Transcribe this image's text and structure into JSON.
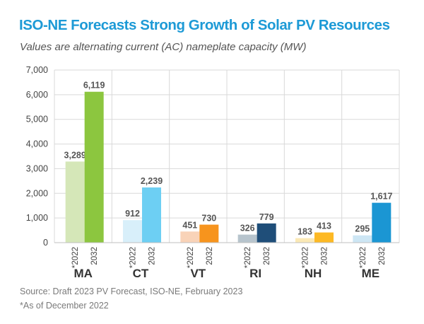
{
  "title": "ISO-NE Forecasts Strong Growth of Solar PV Resources",
  "subtitle": "Values are alternating current (AC) nameplate capacity (MW)",
  "source": "Source: Draft 2023 PV Forecast, ISO-NE, February 2023",
  "note": "*As of December 2022",
  "chart_data": {
    "type": "bar",
    "title": "ISO-NE Forecasts Strong Growth of Solar PV Resources",
    "ylim": [
      0,
      7000
    ],
    "yticks": [
      0,
      1000,
      2000,
      3000,
      4000,
      5000,
      6000,
      7000
    ],
    "ytick_labels": [
      "0",
      "1,000",
      "2,000",
      "3,000",
      "4,000",
      "5,000",
      "6,000",
      "7,000"
    ],
    "grid": true,
    "categories": [
      "MA",
      "CT",
      "VT",
      "RI",
      "NH",
      "ME"
    ],
    "sub_labels": [
      "*2022",
      "2032"
    ],
    "series": [
      {
        "values": [
          3289,
          912,
          451,
          326,
          183,
          295
        ],
        "labels": [
          "3,289",
          "912",
          "451",
          "326",
          "183",
          "295"
        ],
        "colors": [
          "#d5e7b8",
          "#d8effa",
          "#f9d3b8",
          "#b7c4cd",
          "#fbe9b5",
          "#cde6f4"
        ]
      },
      {
        "values": [
          6119,
          2239,
          730,
          779,
          413,
          1617
        ],
        "labels": [
          "6,119",
          "2,239",
          "730",
          "779",
          "413",
          "1,617"
        ],
        "colors": [
          "#8cc63f",
          "#6dcff3",
          "#f7941d",
          "#1f4e79",
          "#fdb924",
          "#1b96d3"
        ]
      }
    ]
  }
}
